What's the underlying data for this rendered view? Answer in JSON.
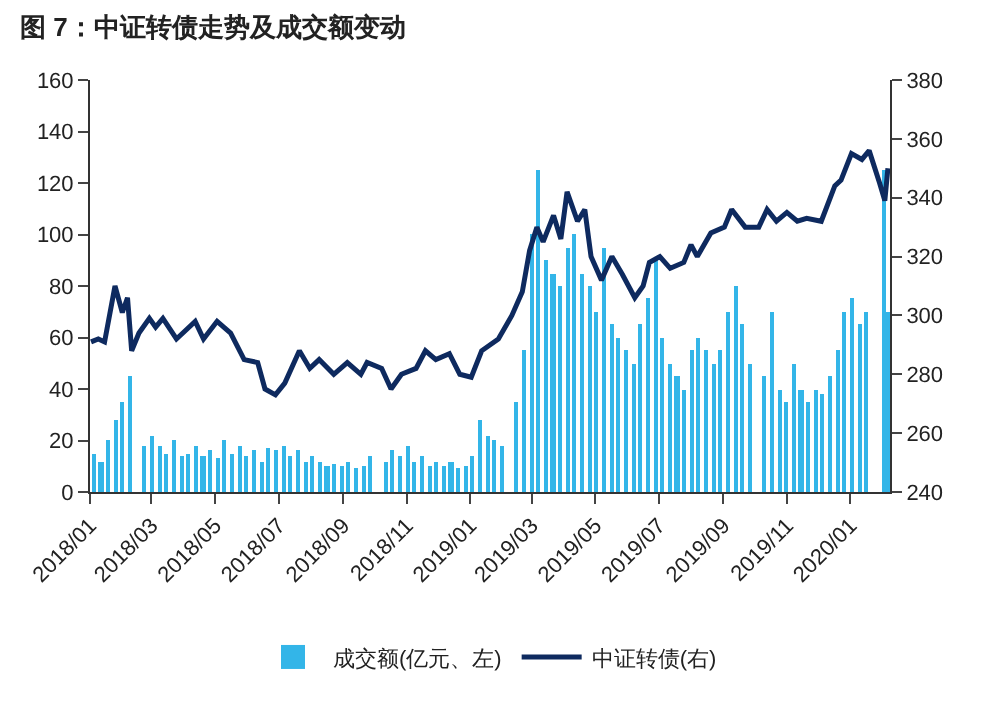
{
  "chart_data": {
    "type": "bar",
    "title": "图 7：中证转债走势及成交额变动",
    "xlim": [
      "2018-01-01",
      "2020-02-08"
    ],
    "xticks": [
      {
        "value": "2018-01-01",
        "label": "2018/01"
      },
      {
        "value": "2018-03-01",
        "label": "2018/03"
      },
      {
        "value": "2018-05-01",
        "label": "2018/05"
      },
      {
        "value": "2018-07-01",
        "label": "2018/07"
      },
      {
        "value": "2018-09-01",
        "label": "2018/09"
      },
      {
        "value": "2018-11-01",
        "label": "2018/11"
      },
      {
        "value": "2019-01-01",
        "label": "2019/01"
      },
      {
        "value": "2019-03-01",
        "label": "2019/03"
      },
      {
        "value": "2019-05-01",
        "label": "2019/05"
      },
      {
        "value": "2019-07-01",
        "label": "2019/07"
      },
      {
        "value": "2019-09-01",
        "label": "2019/09"
      },
      {
        "value": "2019-11-01",
        "label": "2019/11"
      },
      {
        "value": "2020-01-01",
        "label": "2020/01"
      }
    ],
    "ylim": [
      0,
      160
    ],
    "yticks": [
      0,
      20,
      40,
      60,
      80,
      100,
      120,
      140,
      160
    ],
    "y2lim": [
      240,
      380
    ],
    "y2ticks": [
      240,
      260,
      280,
      300,
      320,
      340,
      360,
      380
    ],
    "legend": "bottom",
    "series": [
      {
        "name": "成交额(亿元、左)",
        "color": "#33b5e8",
        "x": [
          "2018-01-05",
          "2018-01-12",
          "2018-01-19",
          "2018-01-26",
          "2018-02-02",
          "2018-02-09",
          "2018-02-23",
          "2018-03-02",
          "2018-03-09",
          "2018-03-16",
          "2018-03-23",
          "2018-03-30",
          "2018-04-06",
          "2018-04-13",
          "2018-04-20",
          "2018-04-27",
          "2018-05-04",
          "2018-05-11",
          "2018-05-18",
          "2018-05-25",
          "2018-06-01",
          "2018-06-08",
          "2018-06-15",
          "2018-06-22",
          "2018-06-29",
          "2018-07-06",
          "2018-07-13",
          "2018-07-20",
          "2018-07-27",
          "2018-08-03",
          "2018-08-10",
          "2018-08-17",
          "2018-08-24",
          "2018-08-31",
          "2018-09-07",
          "2018-09-14",
          "2018-09-21",
          "2018-09-28",
          "2018-10-12",
          "2018-10-19",
          "2018-10-26",
          "2018-11-02",
          "2018-11-09",
          "2018-11-16",
          "2018-11-23",
          "2018-11-30",
          "2018-12-07",
          "2018-12-14",
          "2018-12-21",
          "2018-12-28",
          "2019-01-04",
          "2019-01-11",
          "2019-01-18",
          "2019-01-25",
          "2019-02-01",
          "2019-02-15",
          "2019-02-22",
          "2019-03-01",
          "2019-03-08",
          "2019-03-15",
          "2019-03-22",
          "2019-03-29",
          "2019-04-05",
          "2019-04-12",
          "2019-04-19",
          "2019-04-26",
          "2019-05-03",
          "2019-05-10",
          "2019-05-17",
          "2019-05-24",
          "2019-05-31",
          "2019-06-07",
          "2019-06-14",
          "2019-06-21",
          "2019-06-28",
          "2019-07-05",
          "2019-07-12",
          "2019-07-19",
          "2019-07-26",
          "2019-08-02",
          "2019-08-09",
          "2019-08-16",
          "2019-08-23",
          "2019-08-30",
          "2019-09-06",
          "2019-09-13",
          "2019-09-20",
          "2019-09-27",
          "2019-10-11",
          "2019-10-18",
          "2019-10-25",
          "2019-11-01",
          "2019-11-08",
          "2019-11-15",
          "2019-11-22",
          "2019-11-29",
          "2019-12-06",
          "2019-12-13",
          "2019-12-20",
          "2019-12-27",
          "2020-01-03",
          "2020-01-10",
          "2020-01-17",
          "2020-02-03",
          "2020-02-06"
        ],
        "values": [
          15,
          12,
          20,
          28,
          35,
          45,
          18,
          22,
          18,
          15,
          20,
          14,
          15,
          18,
          14,
          16,
          13,
          20,
          15,
          18,
          14,
          16,
          12,
          17,
          16,
          18,
          14,
          16,
          12,
          14,
          12,
          10,
          11,
          10,
          12,
          9,
          10,
          14,
          12,
          16,
          14,
          18,
          12,
          14,
          10,
          12,
          10,
          12,
          9,
          10,
          14,
          28,
          22,
          20,
          18,
          35,
          55,
          100,
          125,
          90,
          85,
          80,
          95,
          100,
          85,
          80,
          70,
          95,
          65,
          60,
          55,
          50,
          65,
          75,
          90,
          60,
          50,
          45,
          40,
          55,
          60,
          55,
          50,
          55,
          70,
          80,
          65,
          50,
          45,
          70,
          40,
          35,
          50,
          40,
          35,
          40,
          38,
          45,
          55,
          70,
          75,
          65,
          70,
          125,
          70
        ]
      },
      {
        "name": "中证转债(右)",
        "type": "line",
        "axis": "y2",
        "color": "#0e2a5f",
        "x": [
          "2018-01-02",
          "2018-01-09",
          "2018-01-15",
          "2018-01-25",
          "2018-02-01",
          "2018-02-06",
          "2018-02-10",
          "2018-02-17",
          "2018-02-27",
          "2018-03-05",
          "2018-03-12",
          "2018-03-25",
          "2018-04-12",
          "2018-04-20",
          "2018-05-03",
          "2018-05-16",
          "2018-05-29",
          "2018-06-11",
          "2018-06-18",
          "2018-06-28",
          "2018-07-07",
          "2018-07-21",
          "2018-07-31",
          "2018-08-09",
          "2018-08-23",
          "2018-09-05",
          "2018-09-18",
          "2018-09-24",
          "2018-10-08",
          "2018-10-17",
          "2018-10-27",
          "2018-11-10",
          "2018-11-19",
          "2018-11-29",
          "2018-12-12",
          "2018-12-22",
          "2019-01-02",
          "2019-01-12",
          "2019-01-28",
          "2019-02-10",
          "2019-02-20",
          "2019-02-27",
          "2019-03-06",
          "2019-03-12",
          "2019-03-22",
          "2019-03-29",
          "2019-04-04",
          "2019-04-14",
          "2019-04-21",
          "2019-04-27",
          "2019-05-07",
          "2019-05-17",
          "2019-05-27",
          "2019-06-08",
          "2019-06-16",
          "2019-06-22",
          "2019-07-02",
          "2019-07-12",
          "2019-07-25",
          "2019-08-01",
          "2019-08-07",
          "2019-08-20",
          "2019-09-02",
          "2019-09-09",
          "2019-09-22",
          "2019-10-05",
          "2019-10-13",
          "2019-10-22",
          "2019-11-01",
          "2019-11-11",
          "2019-11-20",
          "2019-12-04",
          "2019-12-17",
          "2019-12-23",
          "2020-01-02",
          "2020-01-12",
          "2020-01-19",
          "2020-01-29",
          "2020-02-03",
          "2020-02-06"
        ],
        "values": [
          291,
          292,
          291,
          310,
          301,
          306,
          288,
          294,
          299,
          296,
          299,
          292,
          298,
          292,
          298,
          294,
          285,
          284,
          275,
          273,
          277,
          288,
          282,
          285,
          280,
          284,
          280,
          284,
          282,
          275,
          280,
          282,
          288,
          285,
          287,
          280,
          279,
          288,
          292,
          300,
          308,
          322,
          330,
          325,
          334,
          326,
          342,
          332,
          336,
          320,
          312,
          320,
          314,
          306,
          310,
          318,
          320,
          316,
          318,
          324,
          320,
          328,
          330,
          336,
          330,
          330,
          336,
          332,
          335,
          332,
          333,
          332,
          344,
          346,
          355,
          353,
          356,
          345,
          339,
          350
        ]
      }
    ]
  }
}
